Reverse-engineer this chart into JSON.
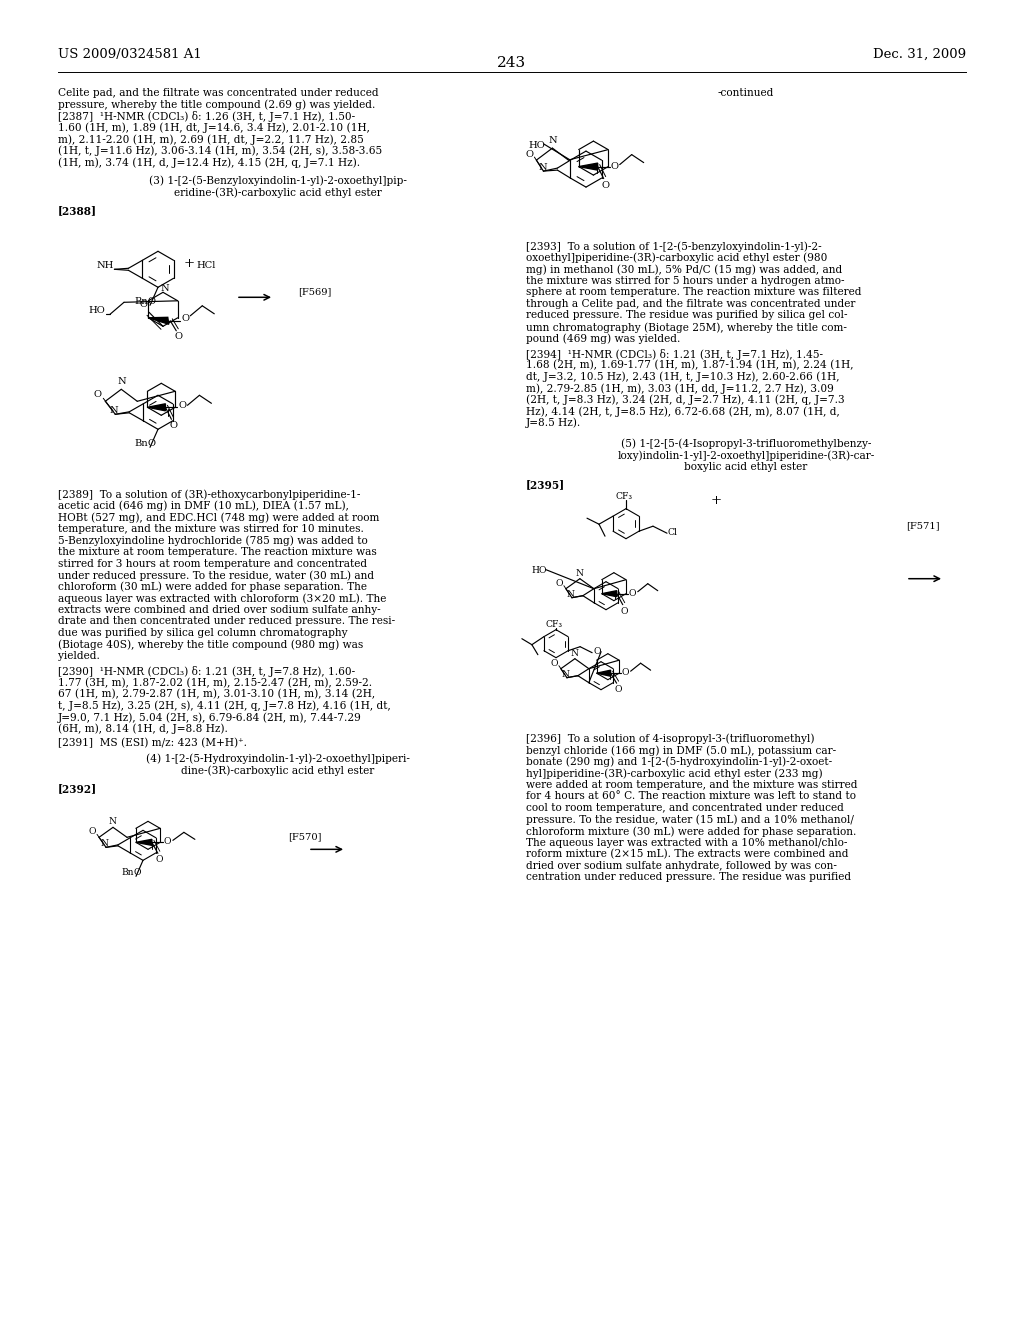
{
  "header_left": "US 2009/0324581 A1",
  "header_right": "Dec. 31, 2009",
  "page_number": "243",
  "bg_color": "#ffffff",
  "text_color": "#000000",
  "fs_body": 7.6,
  "fs_header": 9.5,
  "fs_pagenum": 11.0,
  "left_col_top": [
    "Celite pad, and the filtrate was concentrated under reduced",
    "pressure, whereby the title compound (2.69 g) was yielded.",
    "[2387]  ¹H-NMR (CDCl₃) δ: 1.26 (3H, t, J=7.1 Hz), 1.50-",
    "1.60 (1H, m), 1.89 (1H, dt, J=14.6, 3.4 Hz), 2.01-2.10 (1H,",
    "m), 2.11-2.20 (1H, m), 2.69 (1H, dt, J=2.2, 11.7 Hz), 2.85",
    "(1H, t, J=11.6 Hz), 3.06-3.14 (1H, m), 3.54 (2H, s), 3.58-3.65",
    "(1H, m), 3.74 (1H, d, J=12.4 Hz), 4.15 (2H, q, J=7.1 Hz)."
  ],
  "sec3_title": [
    "(3) 1-[2-(5-Benzyloxyindolin-1-yl)-2-oxoethyl]pip-",
    "eridine-(3R)-carboxylic acid ethyl ester"
  ],
  "sec3_ref": "[2388]",
  "sec3_code": "[F569]",
  "para2389": [
    "[2389]  To a solution of (3R)-ethoxycarbonylpiperidine-1-",
    "acetic acid (646 mg) in DMF (10 mL), DIEA (1.57 mL),",
    "HOBt (527 mg), and EDC.HCl (748 mg) were added at room",
    "temperature, and the mixture was stirred for 10 minutes.",
    "5-Benzyloxyindoline hydrochloride (785 mg) was added to",
    "the mixture at room temperature. The reaction mixture was",
    "stirred for 3 hours at room temperature and concentrated",
    "under reduced pressure. To the residue, water (30 mL) and",
    "chloroform (30 mL) were added for phase separation. The",
    "aqueous layer was extracted with chloroform (3×20 mL). The",
    "extracts were combined and dried over sodium sulfate anhy-",
    "drate and then concentrated under reduced pressure. The resi-",
    "due was purified by silica gel column chromatography",
    "(Biotage 40S), whereby the title compound (980 mg) was",
    "yielded."
  ],
  "nmr2390": [
    "[2390]  ¹H-NMR (CDCl₃) δ: 1.21 (3H, t, J=7.8 Hz), 1.60-",
    "1.77 (3H, m), 1.87-2.02 (1H, m), 2.15-2.47 (2H, m), 2.59-2.",
    "67 (1H, m), 2.79-2.87 (1H, m), 3.01-3.10 (1H, m), 3.14 (2H,",
    "t, J=8.5 Hz), 3.25 (2H, s), 4.11 (2H, q, J=7.8 Hz), 4.16 (1H, dt,",
    "J=9.0, 7.1 Hz), 5.04 (2H, s), 6.79-6.84 (2H, m), 7.44-7.29",
    "(6H, m), 8.14 (1H, d, J=8.8 Hz)."
  ],
  "ms2391": "[2391]  MS (ESI) m/z: 423 (M+H)⁺.",
  "sec4_title": [
    "(4) 1-[2-(5-Hydroxyindolin-1-yl)-2-oxoethyl]piperi-",
    "dine-(3R)-carboxylic acid ethyl ester"
  ],
  "sec4_ref": "[2392]",
  "sec4_code": "[F570]",
  "right_continued": "-continued",
  "para2393": [
    "[2393]  To a solution of 1-[2-(5-benzyloxyindolin-1-yl)-2-",
    "oxoethyl]piperidine-(3R)-carboxylic acid ethyl ester (980",
    "mg) in methanol (30 mL), 5% Pd/C (15 mg) was added, and",
    "the mixture was stirred for 5 hours under a hydrogen atmo-",
    "sphere at room temperature. The reaction mixture was filtered",
    "through a Celite pad, and the filtrate was concentrated under",
    "reduced pressure. The residue was purified by silica gel col-",
    "umn chromatography (Biotage 25M), whereby the title com-",
    "pound (469 mg) was yielded."
  ],
  "nmr2394": [
    "[2394]  ¹H-NMR (CDCl₃) δ: 1.21 (3H, t, J=7.1 Hz), 1.45-",
    "1.68 (2H, m), 1.69-1.77 (1H, m), 1.87-1.94 (1H, m), 2.24 (1H,",
    "dt, J=3.2, 10.5 Hz), 2.43 (1H, t, J=10.3 Hz), 2.60-2.66 (1H,",
    "m), 2.79-2.85 (1H, m), 3.03 (1H, dd, J=11.2, 2.7 Hz), 3.09",
    "(2H, t, J=8.3 Hz), 3.24 (2H, d, J=2.7 Hz), 4.11 (2H, q, J=7.3",
    "Hz), 4.14 (2H, t, J=8.5 Hz), 6.72-6.68 (2H, m), 8.07 (1H, d,",
    "J=8.5 Hz)."
  ],
  "sec5_title": [
    "(5) 1-[2-[5-(4-Isopropyl-3-trifluoromethylbenzy-",
    "loxy)indolin-1-yl]-2-oxoethyl]piperidine-(3R)-car-",
    "boxylic acid ethyl ester"
  ],
  "sec5_ref": "[2395]",
  "sec5_code": "[F571]",
  "para2396": [
    "[2396]  To a solution of 4-isopropyl-3-(trifluoromethyl)",
    "benzyl chloride (166 mg) in DMF (5.0 mL), potassium car-",
    "bonate (290 mg) and 1-[2-(5-hydroxyindolin-1-yl)-2-oxoet-",
    "hyl]piperidine-(3R)-carboxylic acid ethyl ester (233 mg)",
    "were added at room temperature, and the mixture was stirred",
    "for 4 hours at 60° C. The reaction mixture was left to stand to",
    "cool to room temperature, and concentrated under reduced",
    "pressure. To the residue, water (15 mL) and a 10% methanol/",
    "chloroform mixture (30 mL) were added for phase separation.",
    "The aqueous layer was extracted with a 10% methanol/chlo-",
    "roform mixture (2×15 mL). The extracts were combined and",
    "dried over sodium sulfate anhydrate, followed by was con-",
    "centration under reduced pressure. The residue was purified"
  ]
}
